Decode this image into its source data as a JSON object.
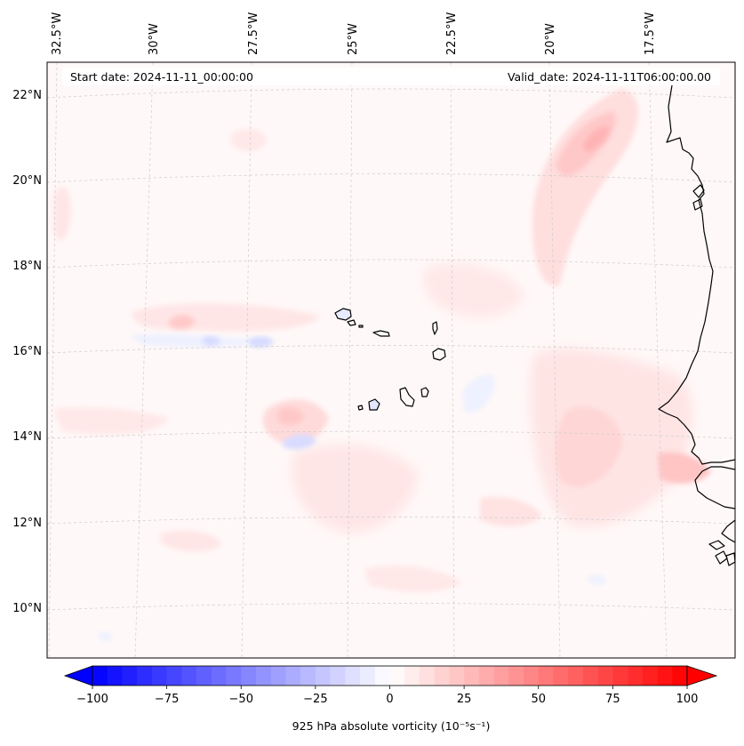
{
  "header": {
    "start_date": "Start date: 2024-11-11_00:00:00",
    "valid_date": "Valid_date: 2024-11-11T06:00:00.00"
  },
  "longitude_labels": [
    "32.5°W",
    "30°W",
    "27.5°W",
    "25°W",
    "22.5°W",
    "20°W",
    "17.5°W"
  ],
  "latitude_labels": [
    "22°N",
    "20°N",
    "18°N",
    "16°N",
    "14°N",
    "12°N",
    "10°N"
  ],
  "colorbar": {
    "label": "925 hPa absolute vorticity (10⁻⁵s⁻¹)",
    "ticks": [
      "−100",
      "−75",
      "−50",
      "−25",
      "0",
      "25",
      "50",
      "75",
      "100"
    ],
    "min": -100,
    "max": 100,
    "colormap": "bwr",
    "extend": "both",
    "low_color": "#0000ff",
    "mid_color": "#ffffff",
    "high_color": "#ff0000"
  },
  "map": {
    "field_background": "#fff8f8",
    "coastline_color": "#000000",
    "gridline_color": "#cccccc",
    "gridline_style": "dashed"
  }
}
